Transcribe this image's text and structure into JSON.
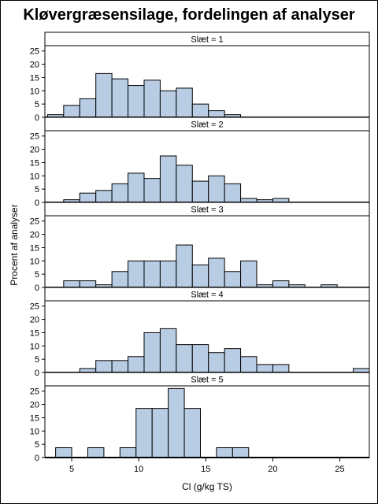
{
  "chart_data": {
    "type": "bar",
    "title": "Kløvergræsensilage, fordelingen af analyser",
    "xlabel": "Cl (g/kg TS)",
    "ylabel": "Procent af analyser",
    "xlim": [
      3,
      27.2
    ],
    "ylim": [
      0,
      27
    ],
    "xticks": [
      5,
      10,
      15,
      20,
      25
    ],
    "yticks": [
      0,
      5,
      10,
      15,
      20,
      25
    ],
    "bin_width": 1.2,
    "bar_color": "#b8cce4",
    "panels": [
      {
        "label": "Slæt = 1",
        "bins": [
          {
            "x": 3.2,
            "value": 1
          },
          {
            "x": 4.4,
            "value": 4.5
          },
          {
            "x": 5.6,
            "value": 7
          },
          {
            "x": 6.8,
            "value": 16.5
          },
          {
            "x": 8.0,
            "value": 14.5
          },
          {
            "x": 9.2,
            "value": 12
          },
          {
            "x": 10.4,
            "value": 14
          },
          {
            "x": 11.6,
            "value": 10
          },
          {
            "x": 12.8,
            "value": 11
          },
          {
            "x": 14.0,
            "value": 5
          },
          {
            "x": 15.2,
            "value": 2.5
          },
          {
            "x": 16.4,
            "value": 1
          }
        ]
      },
      {
        "label": "Slæt = 2",
        "bins": [
          {
            "x": 4.4,
            "value": 1
          },
          {
            "x": 5.6,
            "value": 3.5
          },
          {
            "x": 6.8,
            "value": 4.5
          },
          {
            "x": 8.0,
            "value": 7
          },
          {
            "x": 9.2,
            "value": 11
          },
          {
            "x": 10.4,
            "value": 9
          },
          {
            "x": 11.6,
            "value": 17.5
          },
          {
            "x": 12.8,
            "value": 14
          },
          {
            "x": 14.0,
            "value": 8
          },
          {
            "x": 15.2,
            "value": 10
          },
          {
            "x": 16.4,
            "value": 7
          },
          {
            "x": 17.6,
            "value": 1.5
          },
          {
            "x": 18.8,
            "value": 1
          },
          {
            "x": 20.0,
            "value": 1.5
          }
        ]
      },
      {
        "label": "Slæt = 3",
        "bins": [
          {
            "x": 4.4,
            "value": 2.5
          },
          {
            "x": 5.6,
            "value": 2.5
          },
          {
            "x": 6.8,
            "value": 1
          },
          {
            "x": 8.0,
            "value": 6
          },
          {
            "x": 9.2,
            "value": 10
          },
          {
            "x": 10.4,
            "value": 10
          },
          {
            "x": 11.6,
            "value": 10
          },
          {
            "x": 12.8,
            "value": 16
          },
          {
            "x": 14.0,
            "value": 8.5
          },
          {
            "x": 15.2,
            "value": 11
          },
          {
            "x": 16.4,
            "value": 6
          },
          {
            "x": 17.6,
            "value": 10
          },
          {
            "x": 18.8,
            "value": 1
          },
          {
            "x": 20.0,
            "value": 2.5
          },
          {
            "x": 21.2,
            "value": 1
          },
          {
            "x": 23.6,
            "value": 1
          }
        ]
      },
      {
        "label": "Slæt = 4",
        "bins": [
          {
            "x": 5.6,
            "value": 1.5
          },
          {
            "x": 6.8,
            "value": 4.5
          },
          {
            "x": 8.0,
            "value": 4.5
          },
          {
            "x": 9.2,
            "value": 6
          },
          {
            "x": 10.4,
            "value": 15
          },
          {
            "x": 11.6,
            "value": 16.5
          },
          {
            "x": 12.8,
            "value": 10.5
          },
          {
            "x": 14.0,
            "value": 10.5
          },
          {
            "x": 15.2,
            "value": 7.5
          },
          {
            "x": 16.4,
            "value": 9
          },
          {
            "x": 17.6,
            "value": 6
          },
          {
            "x": 18.8,
            "value": 3
          },
          {
            "x": 20.0,
            "value": 3
          },
          {
            "x": 26.0,
            "value": 1.5
          }
        ]
      },
      {
        "label": "Slæt = 5",
        "bins": [
          {
            "x": 3.8,
            "value": 3.7
          },
          {
            "x": 6.2,
            "value": 3.7
          },
          {
            "x": 8.6,
            "value": 3.7
          },
          {
            "x": 9.8,
            "value": 18.5
          },
          {
            "x": 11.0,
            "value": 18.5
          },
          {
            "x": 12.2,
            "value": 26
          },
          {
            "x": 13.4,
            "value": 18.5
          },
          {
            "x": 15.8,
            "value": 3.7
          },
          {
            "x": 17.0,
            "value": 3.7
          }
        ]
      }
    ]
  }
}
